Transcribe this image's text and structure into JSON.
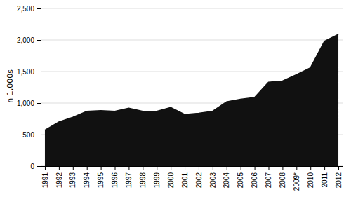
{
  "chart_data": {
    "type": "area",
    "categories": [
      "1991",
      "1992",
      "1993",
      "1994",
      "1995",
      "1996",
      "1997",
      "1998",
      "1999",
      "2000",
      "2001",
      "2002",
      "2003",
      "2004",
      "2005",
      "2006",
      "2007",
      "2008",
      "2009*",
      "2010",
      "2011",
      "2012"
    ],
    "values": [
      570,
      700,
      775,
      870,
      880,
      870,
      920,
      870,
      870,
      930,
      820,
      840,
      870,
      1020,
      1060,
      1090,
      1330,
      1350,
      1450,
      1560,
      1980,
      2090
    ],
    "color": "#111111",
    "y_label": "in 1,000s",
    "ylim": [
      0,
      2500
    ],
    "yticks": [
      0,
      500,
      {
        "value": 1000,
        "label": "1,000"
      },
      {
        "value": 1500,
        "label": "1,500"
      },
      {
        "value": 2000,
        "label": "2,000"
      },
      {
        "value": 2500,
        "label": "2,500"
      }
    ],
    "grid": true
  }
}
